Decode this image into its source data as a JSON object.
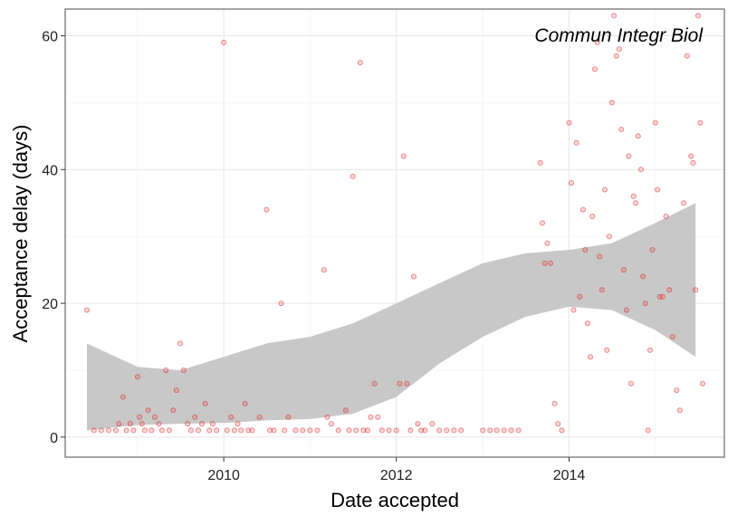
{
  "chart_data": {
    "type": "scatter",
    "title": "",
    "annotation": "Commun Integr Biol",
    "xlabel": "Date accepted",
    "ylabel": "Acceptance delay (days)",
    "xlim": [
      "2008-03-01",
      "2015-10-20"
    ],
    "ylim": [
      -3,
      64
    ],
    "x_ticks": [
      "2010-01-01",
      "2012-01-01",
      "2014-01-01"
    ],
    "x_tick_labels": [
      "2010",
      "2012",
      "2014"
    ],
    "y_ticks": [
      0,
      20,
      40,
      60
    ],
    "y_tick_labels": [
      "0",
      "20",
      "40",
      "60"
    ],
    "grid": true,
    "point_color": "#e31a1c",
    "band_color": "#c8c8c8",
    "smooth": {
      "x": [
        "2008-06-01",
        "2009-01-01",
        "2009-07-01",
        "2010-01-01",
        "2010-07-01",
        "2011-01-01",
        "2011-07-01",
        "2012-01-01",
        "2012-07-01",
        "2013-01-01",
        "2013-07-01",
        "2014-01-01",
        "2014-07-01",
        "2015-01-01",
        "2015-06-20"
      ],
      "lower": [
        1,
        1.8,
        2,
        2.1,
        2.5,
        2.7,
        3.5,
        6,
        11,
        15,
        18,
        19.5,
        19,
        16,
        12
      ],
      "upper": [
        14,
        10.5,
        10,
        12,
        14,
        15,
        17,
        20,
        23,
        26,
        27.5,
        28,
        29,
        32,
        35
      ]
    },
    "points": [
      [
        "2008-06-01",
        19
      ],
      [
        "2008-07-01",
        1
      ],
      [
        "2008-08-01",
        1
      ],
      [
        "2008-09-01",
        1
      ],
      [
        "2008-10-01",
        1
      ],
      [
        "2008-10-15",
        2
      ],
      [
        "2008-11-01",
        6
      ],
      [
        "2008-11-15",
        1
      ],
      [
        "2008-12-01",
        2
      ],
      [
        "2008-12-15",
        1
      ],
      [
        "2009-01-01",
        9
      ],
      [
        "2009-01-10",
        3
      ],
      [
        "2009-01-20",
        2
      ],
      [
        "2009-02-01",
        1
      ],
      [
        "2009-02-15",
        4
      ],
      [
        "2009-03-01",
        1
      ],
      [
        "2009-03-15",
        3
      ],
      [
        "2009-04-01",
        2
      ],
      [
        "2009-04-15",
        1
      ],
      [
        "2009-05-01",
        10
      ],
      [
        "2009-05-15",
        1
      ],
      [
        "2009-06-01",
        4
      ],
      [
        "2009-06-15",
        7
      ],
      [
        "2009-07-01",
        14
      ],
      [
        "2009-07-15",
        10
      ],
      [
        "2009-08-01",
        2
      ],
      [
        "2009-08-15",
        1
      ],
      [
        "2009-09-01",
        3
      ],
      [
        "2009-09-15",
        1
      ],
      [
        "2009-10-01",
        2
      ],
      [
        "2009-10-15",
        5
      ],
      [
        "2009-11-01",
        1
      ],
      [
        "2009-11-15",
        2
      ],
      [
        "2009-12-01",
        1
      ],
      [
        "2010-01-01",
        59
      ],
      [
        "2010-01-15",
        1
      ],
      [
        "2010-02-01",
        3
      ],
      [
        "2010-02-15",
        1
      ],
      [
        "2010-03-01",
        2
      ],
      [
        "2010-03-15",
        1
      ],
      [
        "2010-04-01",
        5
      ],
      [
        "2010-04-15",
        1
      ],
      [
        "2010-05-01",
        1
      ],
      [
        "2010-06-01",
        3
      ],
      [
        "2010-07-01",
        34
      ],
      [
        "2010-07-15",
        1
      ],
      [
        "2010-08-01",
        1
      ],
      [
        "2010-09-01",
        20
      ],
      [
        "2010-09-15",
        1
      ],
      [
        "2010-10-01",
        3
      ],
      [
        "2010-11-01",
        1
      ],
      [
        "2010-12-01",
        1
      ],
      [
        "2011-01-01",
        1
      ],
      [
        "2011-02-01",
        1
      ],
      [
        "2011-03-01",
        25
      ],
      [
        "2011-03-15",
        3
      ],
      [
        "2011-04-01",
        2
      ],
      [
        "2011-05-01",
        1
      ],
      [
        "2011-06-01",
        4
      ],
      [
        "2011-06-15",
        1
      ],
      [
        "2011-07-01",
        39
      ],
      [
        "2011-07-15",
        1
      ],
      [
        "2011-08-01",
        56
      ],
      [
        "2011-08-15",
        1
      ],
      [
        "2011-09-01",
        1
      ],
      [
        "2011-09-15",
        3
      ],
      [
        "2011-10-01",
        8
      ],
      [
        "2011-10-15",
        3
      ],
      [
        "2011-11-01",
        1
      ],
      [
        "2011-12-01",
        1
      ],
      [
        "2012-01-01",
        1
      ],
      [
        "2012-01-15",
        8
      ],
      [
        "2012-02-01",
        42
      ],
      [
        "2012-02-15",
        8
      ],
      [
        "2012-03-01",
        1
      ],
      [
        "2012-03-15",
        24
      ],
      [
        "2012-04-01",
        2
      ],
      [
        "2012-04-15",
        1
      ],
      [
        "2012-05-01",
        1
      ],
      [
        "2012-06-01",
        2
      ],
      [
        "2012-07-01",
        1
      ],
      [
        "2012-08-01",
        1
      ],
      [
        "2012-09-01",
        1
      ],
      [
        "2012-10-01",
        1
      ],
      [
        "2013-01-01",
        1
      ],
      [
        "2013-02-01",
        1
      ],
      [
        "2013-03-01",
        1
      ],
      [
        "2013-04-01",
        1
      ],
      [
        "2013-05-01",
        1
      ],
      [
        "2013-06-01",
        1
      ],
      [
        "2013-09-01",
        41
      ],
      [
        "2013-09-10",
        32
      ],
      [
        "2013-09-20",
        26
      ],
      [
        "2013-10-01",
        29
      ],
      [
        "2013-10-15",
        26
      ],
      [
        "2013-11-01",
        5
      ],
      [
        "2013-11-15",
        2
      ],
      [
        "2013-12-01",
        1
      ],
      [
        "2014-01-01",
        47
      ],
      [
        "2014-01-10",
        38
      ],
      [
        "2014-01-20",
        19
      ],
      [
        "2014-02-01",
        44
      ],
      [
        "2014-02-15",
        21
      ],
      [
        "2014-03-01",
        34
      ],
      [
        "2014-03-10",
        28
      ],
      [
        "2014-03-20",
        17
      ],
      [
        "2014-04-01",
        12
      ],
      [
        "2014-04-10",
        33
      ],
      [
        "2014-04-20",
        55
      ],
      [
        "2014-05-01",
        59
      ],
      [
        "2014-05-10",
        27
      ],
      [
        "2014-05-20",
        22
      ],
      [
        "2014-06-01",
        37
      ],
      [
        "2014-06-10",
        13
      ],
      [
        "2014-06-20",
        30
      ],
      [
        "2014-07-01",
        50
      ],
      [
        "2014-07-10",
        63
      ],
      [
        "2014-07-20",
        57
      ],
      [
        "2014-08-01",
        58
      ],
      [
        "2014-08-10",
        46
      ],
      [
        "2014-08-20",
        25
      ],
      [
        "2014-09-01",
        19
      ],
      [
        "2014-09-10",
        42
      ],
      [
        "2014-09-20",
        8
      ],
      [
        "2014-10-01",
        36
      ],
      [
        "2014-10-10",
        35
      ],
      [
        "2014-10-20",
        45
      ],
      [
        "2014-11-01",
        40
      ],
      [
        "2014-11-10",
        24
      ],
      [
        "2014-11-20",
        20
      ],
      [
        "2014-12-01",
        1
      ],
      [
        "2014-12-10",
        13
      ],
      [
        "2014-12-20",
        28
      ],
      [
        "2015-01-01",
        47
      ],
      [
        "2015-01-10",
        37
      ],
      [
        "2015-01-20",
        21
      ],
      [
        "2015-02-01",
        21
      ],
      [
        "2015-02-15",
        33
      ],
      [
        "2015-03-01",
        22
      ],
      [
        "2015-03-15",
        15
      ],
      [
        "2015-04-01",
        7
      ],
      [
        "2015-04-15",
        4
      ],
      [
        "2015-05-01",
        35
      ],
      [
        "2015-05-15",
        57
      ],
      [
        "2015-06-01",
        42
      ],
      [
        "2015-06-10",
        41
      ],
      [
        "2015-06-20",
        22
      ],
      [
        "2015-07-01",
        63
      ],
      [
        "2015-07-10",
        47
      ],
      [
        "2015-07-20",
        8
      ]
    ]
  }
}
